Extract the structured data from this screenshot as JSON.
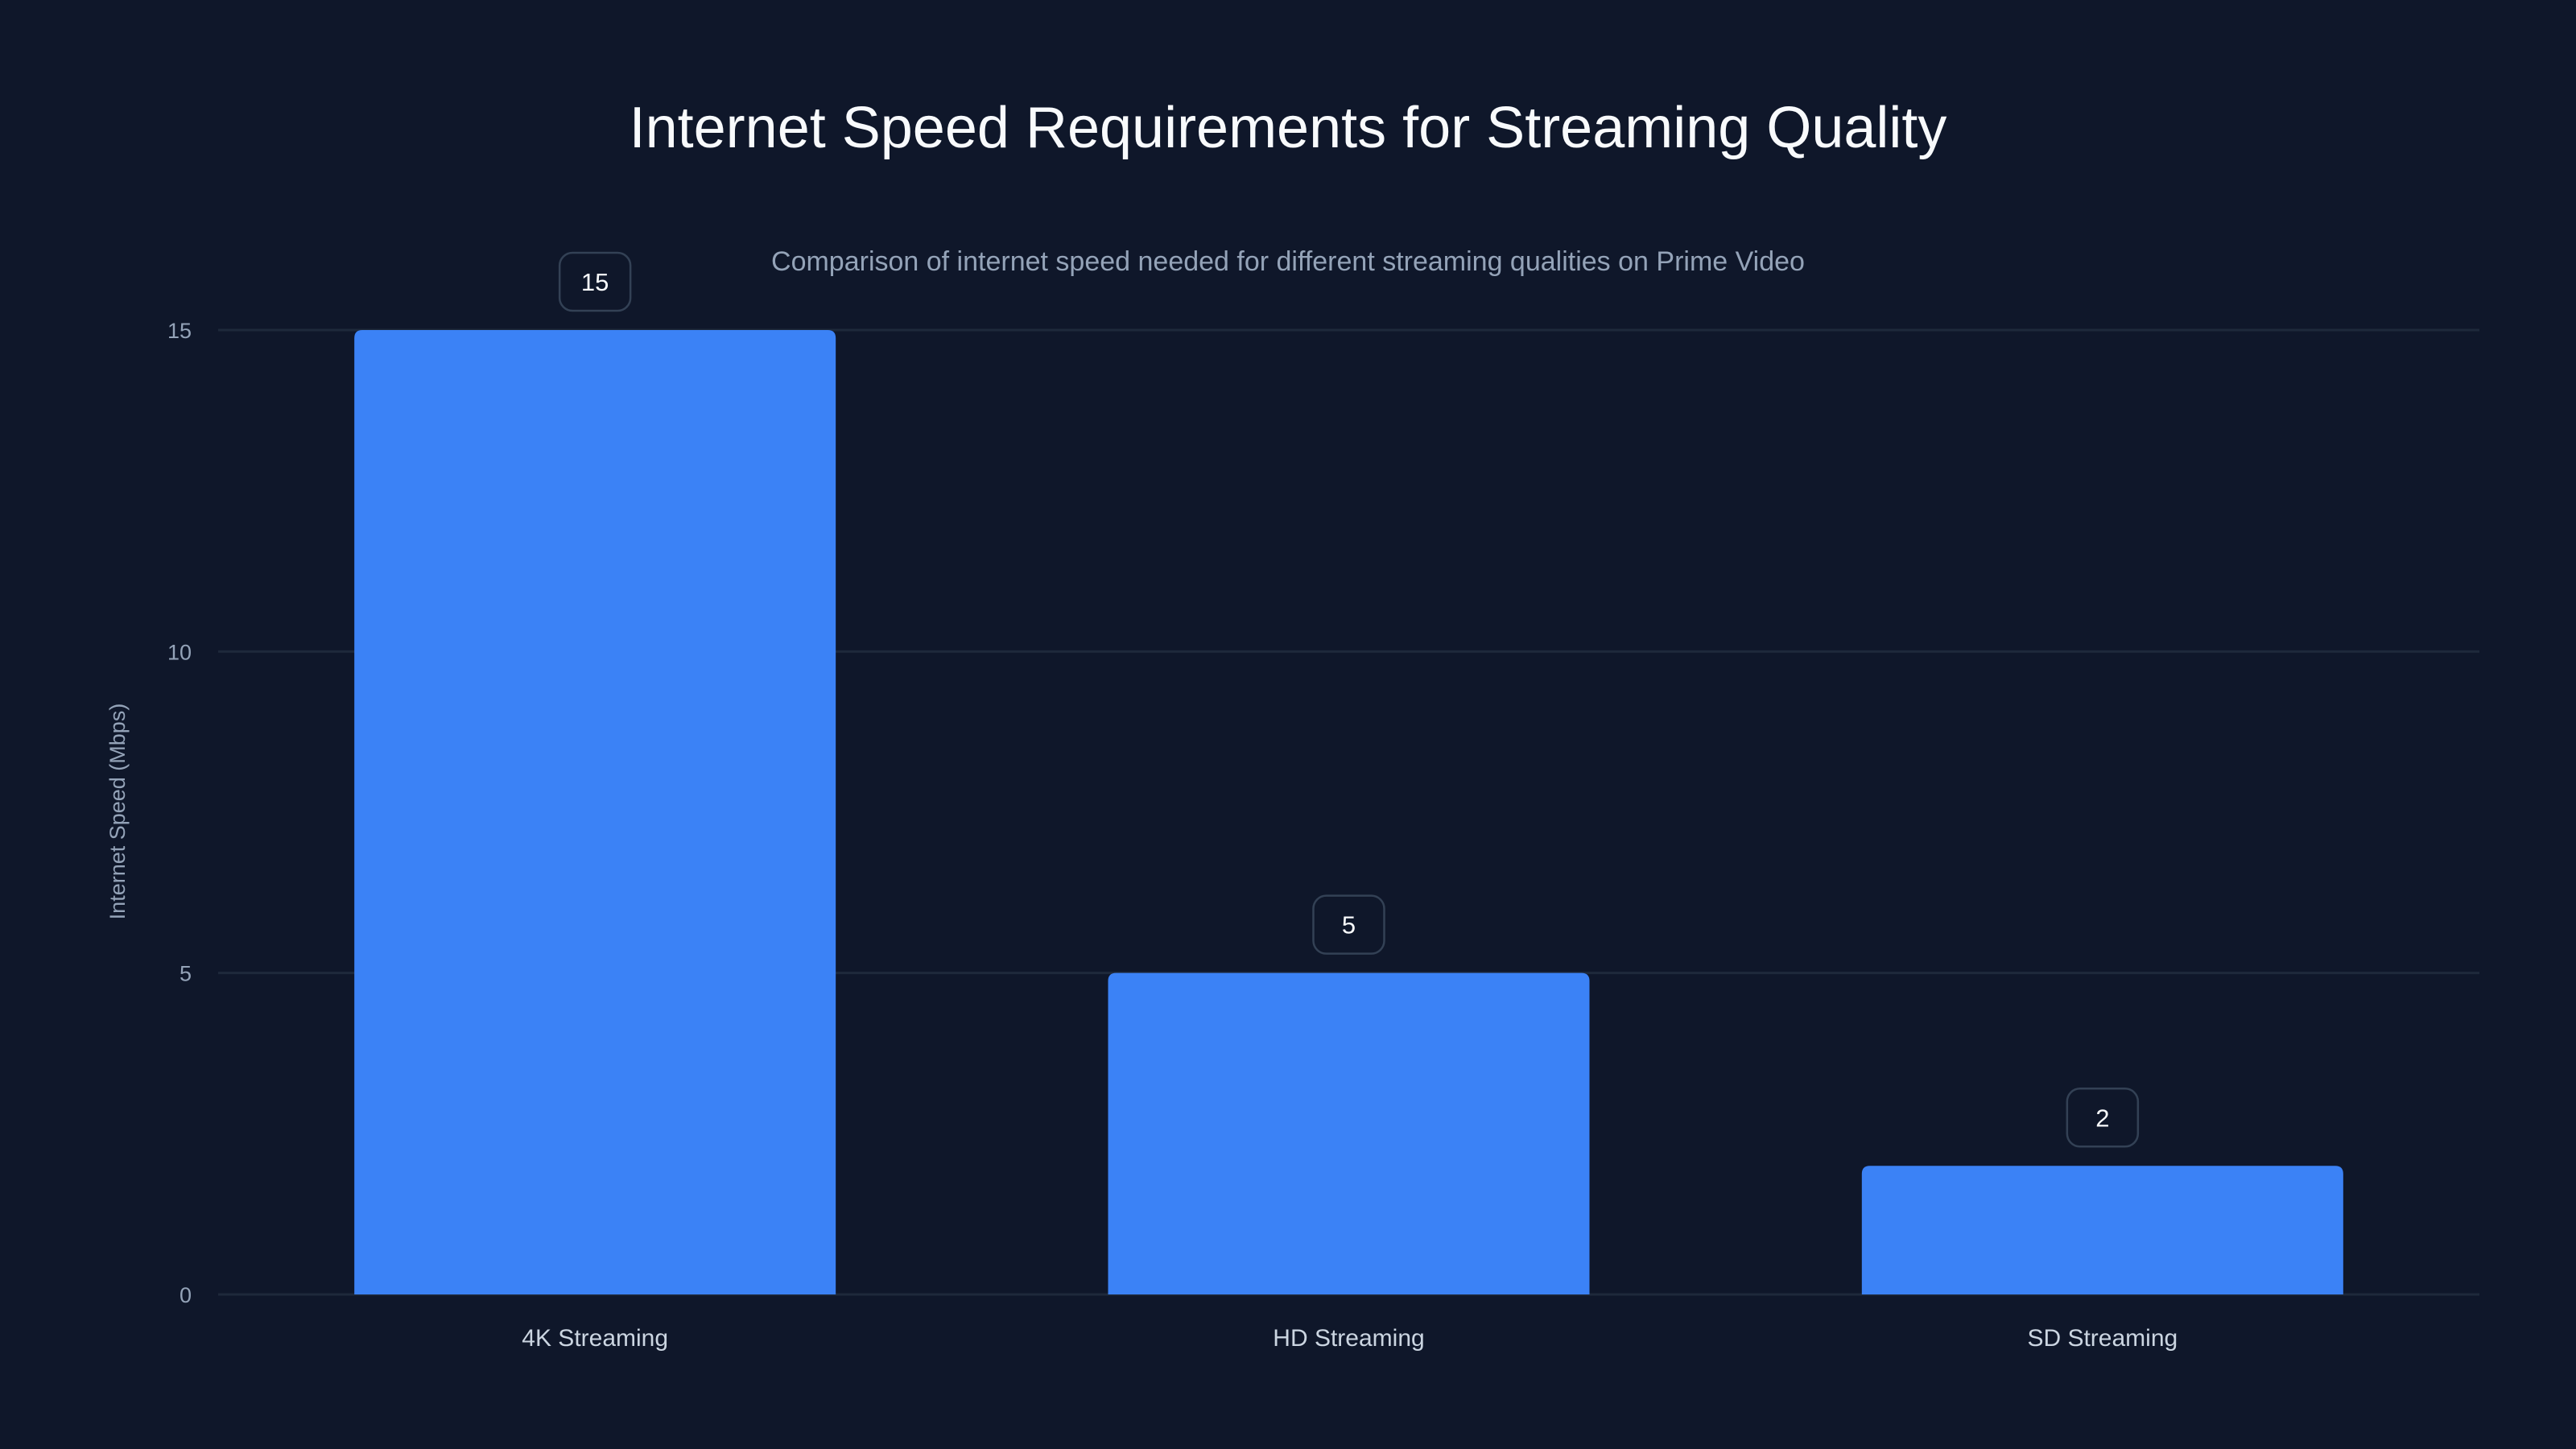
{
  "chart_data": {
    "type": "bar",
    "title": "Internet Speed Requirements for Streaming Quality",
    "subtitle": "Comparison of internet speed needed for different streaming qualities on Prime Video",
    "categories": [
      "4K Streaming",
      "HD Streaming",
      "SD Streaming"
    ],
    "values": [
      15,
      5,
      2
    ],
    "data_labels": [
      "15",
      "5",
      "2"
    ],
    "xlabel": "",
    "ylabel": "Internet Speed (Mbps)",
    "ylim": [
      0,
      15
    ],
    "yticks": [
      0,
      5,
      10,
      15
    ],
    "ytick_labels": [
      "0",
      "5",
      "10",
      "15"
    ],
    "grid": true,
    "colors": {
      "bar": "#3b82f6",
      "background": "#0f172a",
      "grid": "#1e293b"
    }
  }
}
